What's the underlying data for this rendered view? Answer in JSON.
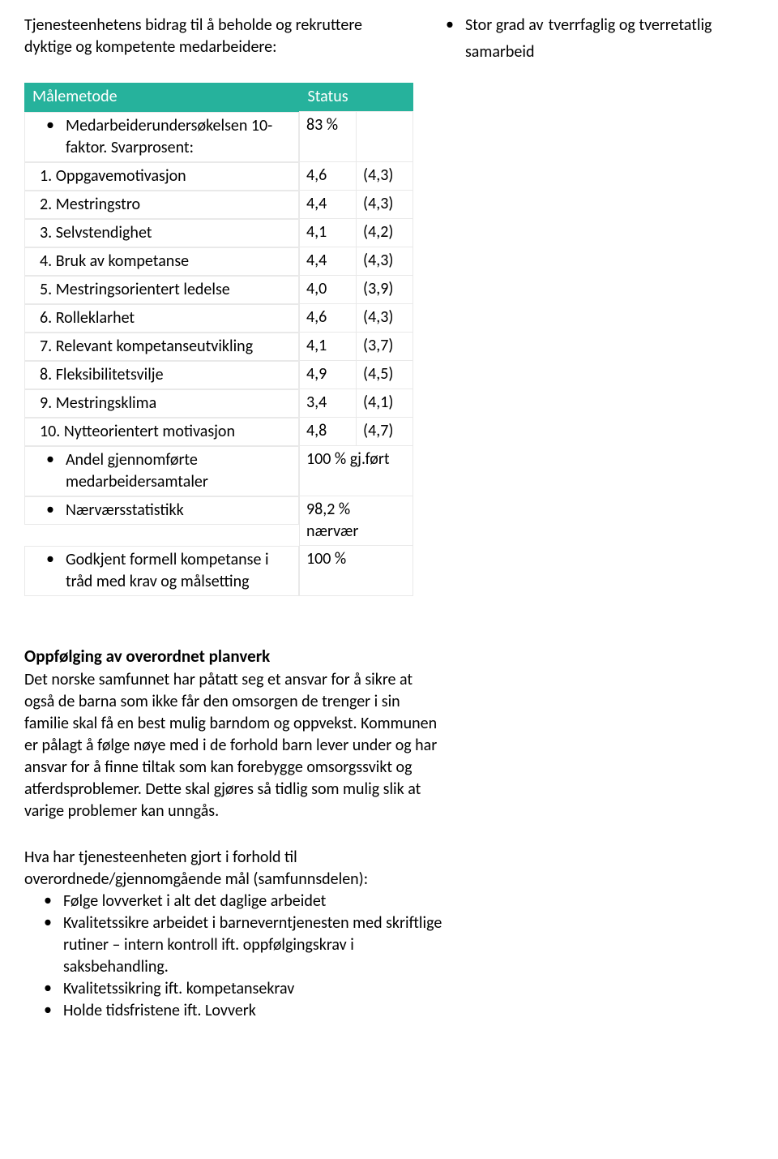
{
  "intro": {
    "left": "Tjenesteenhetens bidrag til å beholde og rekruttere dyktige og kompetente medarbeidere:",
    "right_lead": "Stor grad av",
    "right_mid": "tverrfaglig og tverretatlig",
    "right_tail": "samarbeid"
  },
  "table": {
    "header_bg": "#26b29c",
    "col_method": "Målemetode",
    "col_status": "Status",
    "rows": [
      {
        "label": "Medarbeiderundersøkelsen 10-faktor. Svarprosent:",
        "v1": "83 %",
        "v2": "",
        "bullet": true
      },
      {
        "label": "1. Oppgavemotivasjon",
        "v1": "4,6",
        "v2": "(4,3)",
        "num": true
      },
      {
        "label": "2. Mestringstro",
        "v1": "4,4",
        "v2": "(4,3)",
        "num": true
      },
      {
        "label": "3. Selvstendighet",
        "v1": "4,1",
        "v2": "(4,2)",
        "num": true
      },
      {
        "label": "4. Bruk av kompetanse",
        "v1": "4,4",
        "v2": "(4,3)",
        "num": true
      },
      {
        "label": "5. Mestringsorientert ledelse",
        "v1": "4,0",
        "v2": "(3,9)",
        "num": true
      },
      {
        "label": "6. Rolleklarhet",
        "v1": "4,6",
        "v2": "(4,3)",
        "num": true
      },
      {
        "label": "7. Relevant kompetanseutvikling",
        "v1": "4,1",
        "v2": "(3,7)",
        "num": true
      },
      {
        "label": "8. Fleksibilitetsvilje",
        "v1": "4,9",
        "v2": "(4,5)",
        "num": true
      },
      {
        "label": "9. Mestringsklima",
        "v1": "3,4",
        "v2": "(4,1)",
        "num": true
      },
      {
        "label": "10. Nytteorientert motivasjon",
        "v1": "4,8",
        "v2": "(4,7)",
        "num": true
      },
      {
        "label": "Andel gjennomførte medarbeidersamtaler",
        "v1": "100 % gj.ført",
        "v2": "",
        "bullet": true,
        "span": true
      },
      {
        "label": "Nærværsstatistikk",
        "v1": "98,2 % nærvær",
        "v2": "",
        "bullet": true,
        "span": true
      },
      {
        "label": "Godkjent formell kompetanse i tråd med krav og målsetting",
        "v1": "100 %",
        "v2": "",
        "bullet": true,
        "span": true
      }
    ]
  },
  "mid": {
    "heading": "Oppfølging av overordnet planverk",
    "body": "Det norske samfunnet har påtatt seg et ansvar for å sikre at også de barna som ikke får den omsorgen de trenger i sin familie skal få en best mulig barndom og oppvekst. Kommunen er pålagt å følge nøye med i de forhold barn lever under og har ansvar for å finne tiltak som kan forebygge omsorgssvikt og atferdsproblemer. Dette skal gjøres så tidlig som mulig slik at varige problemer kan unngås."
  },
  "bottom": {
    "lead": "Hva har tjenesteenheten gjort i forhold til overordnede/gjennomgående mål (samfunnsdelen):",
    "items": [
      "Følge lovverket i alt det daglige arbeidet",
      "Kvalitetssikre arbeidet i barneverntjenesten med skriftlige rutiner – intern kontroll ift. oppfølgingskrav i saksbehandling.",
      "Kvalitetssikring ift. kompetansekrav",
      "Holde tidsfristene ift. Lovverk"
    ]
  }
}
